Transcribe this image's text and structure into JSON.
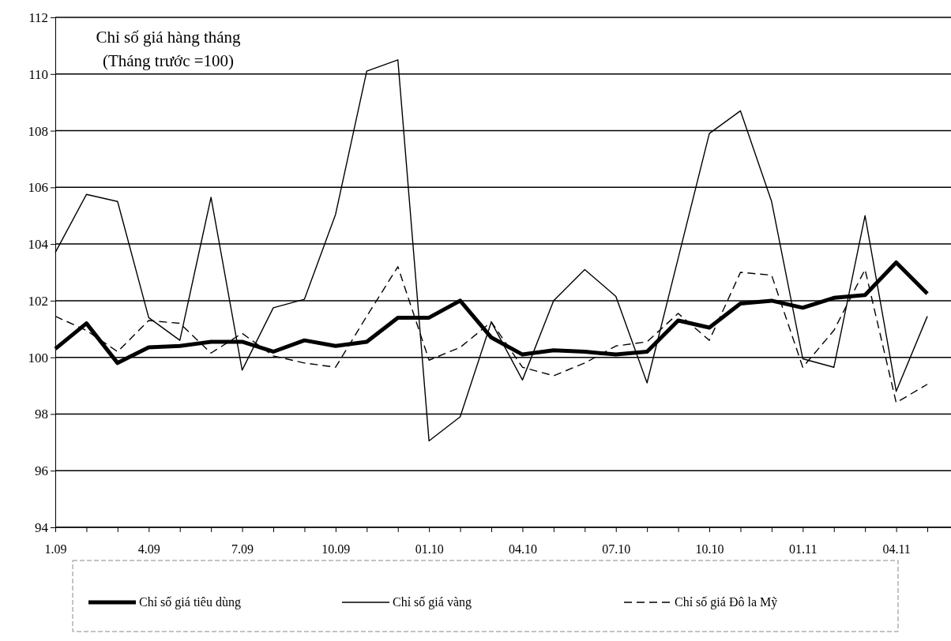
{
  "chart_data": {
    "type": "line",
    "title": "Chỉ số giá hàng tháng",
    "subtitle": "(Tháng trước =100)",
    "categories": [
      "1.09",
      null,
      null,
      "4.09",
      null,
      null,
      "7.09",
      null,
      null,
      "10.09",
      null,
      null,
      "01.10",
      null,
      null,
      "04.10",
      null,
      null,
      "07.10",
      null,
      null,
      "10.10",
      null,
      null,
      "01.11",
      null,
      null,
      "04.11",
      null
    ],
    "series": [
      {
        "name": "Chỉ số giá tiêu dùng",
        "color": "#000000",
        "line_style": "solid",
        "values": [
          100.3,
          101.2,
          99.8,
          100.35,
          100.4,
          100.55,
          100.55,
          100.2,
          100.6,
          100.4,
          100.55,
          101.4,
          101.4,
          102.0,
          100.7,
          100.1,
          100.25,
          100.2,
          100.1,
          100.2,
          101.3,
          101.05,
          101.9,
          102.0,
          101.75,
          102.1,
          102.2,
          103.35,
          102.25
        ]
      },
      {
        "name": "Chỉ số giá vàng",
        "color": "#000000",
        "line_style": "solid",
        "values": [
          103.7,
          105.75,
          105.5,
          101.4,
          100.6,
          105.65,
          99.55,
          101.75,
          102.05,
          105.05,
          110.1,
          110.5,
          97.05,
          97.9,
          101.25,
          99.2,
          102.0,
          103.1,
          102.15,
          99.1,
          103.5,
          107.9,
          108.7,
          105.5,
          99.95,
          99.65,
          105.0,
          98.8,
          101.45
        ]
      },
      {
        "name": "Chỉ số giá Đô la Mỹ",
        "color": "#000000",
        "line_style": "dashed",
        "values": [
          101.45,
          100.95,
          100.2,
          101.3,
          101.2,
          100.15,
          100.85,
          100.05,
          99.8,
          99.65,
          101.45,
          103.2,
          99.9,
          100.35,
          101.25,
          99.65,
          99.35,
          99.8,
          100.4,
          100.55,
          101.55,
          100.6,
          103.0,
          102.9,
          99.65,
          100.95,
          103.1,
          98.4,
          99.05
        ]
      }
    ],
    "ylim": [
      94,
      112
    ],
    "yticks": [
      94,
      96,
      98,
      100,
      102,
      104,
      106,
      108,
      110,
      112
    ],
    "grid": "y",
    "legend": "bottom",
    "marker": "none"
  }
}
